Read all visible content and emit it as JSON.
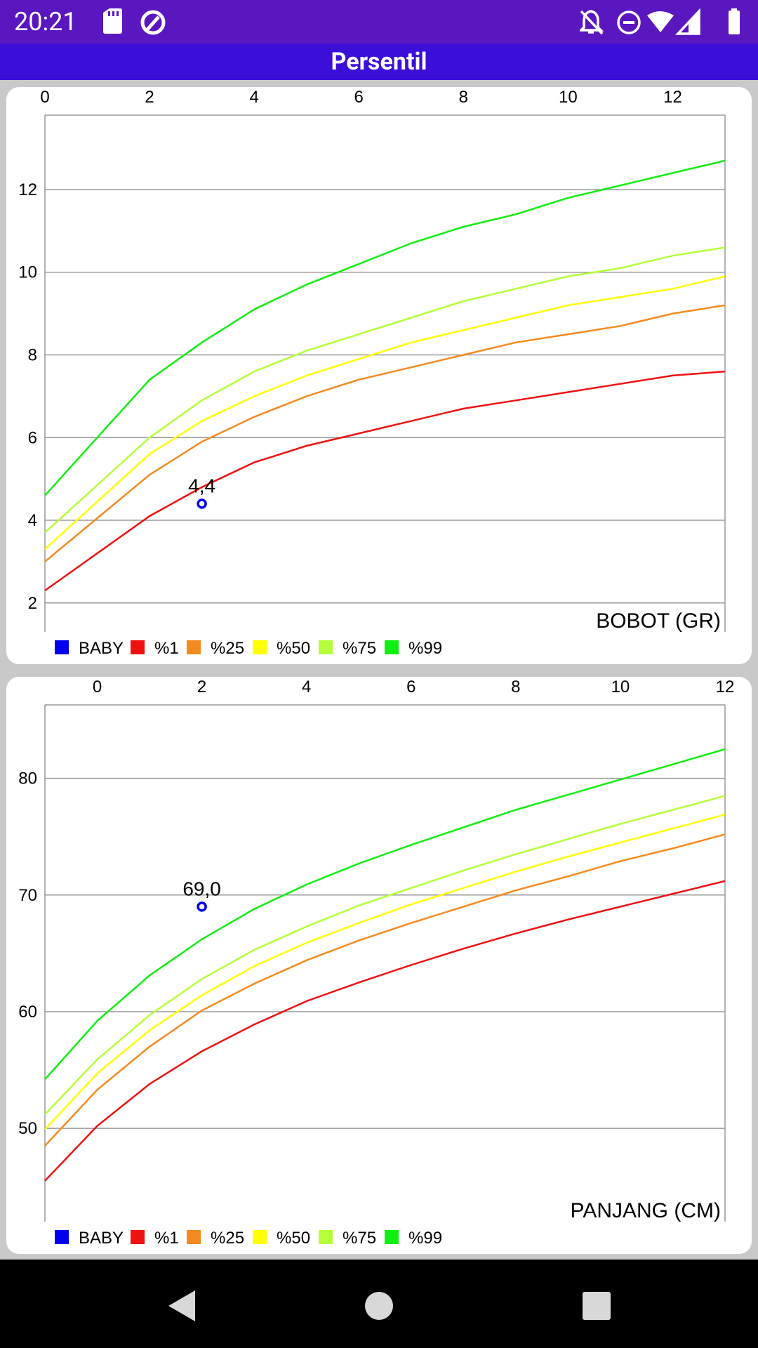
{
  "status_bar": {
    "time": "20:21",
    "left_icons": [
      "sd-card-icon",
      "data-saver-icon"
    ],
    "right_icons": [
      "notifications-off-icon",
      "do-not-disturb-icon",
      "wifi-icon",
      "cell-signal-icon",
      "battery-icon"
    ]
  },
  "app_bar": {
    "title": "Persentil"
  },
  "legend": {
    "items": [
      {
        "label": "BABY",
        "color": "#0000ee"
      },
      {
        "label": "%1",
        "color": "#ee1111"
      },
      {
        "label": "%25",
        "color": "#f58a1f"
      },
      {
        "label": "%50",
        "color": "#ffff00"
      },
      {
        "label": "%75",
        "color": "#b5ff3a"
      },
      {
        "label": "%99",
        "color": "#11ee11"
      }
    ]
  },
  "nav_bar": {
    "buttons": [
      "back-icon",
      "home-icon",
      "recents-icon"
    ]
  },
  "chart_data": [
    {
      "type": "line",
      "label": "BOBOT (GR)",
      "xlim": [
        0,
        13
      ],
      "ylim": [
        1.3,
        13.8
      ],
      "x_ticks": [
        0,
        2,
        4,
        6,
        8,
        10,
        12
      ],
      "y_ticks": [
        2,
        4,
        6,
        8,
        10,
        12
      ],
      "x": [
        0,
        2,
        3,
        4,
        5,
        6,
        7,
        8,
        9,
        10,
        11,
        12,
        13
      ],
      "series": [
        {
          "name": "%1",
          "color": "#ee1111",
          "values": [
            2.3,
            4.1,
            4.8,
            5.4,
            5.8,
            6.1,
            6.4,
            6.7,
            6.9,
            7.1,
            7.3,
            7.5,
            7.6
          ]
        },
        {
          "name": "%25",
          "color": "#f58a1f",
          "values": [
            3.0,
            5.1,
            5.9,
            6.5,
            7.0,
            7.4,
            7.7,
            8.0,
            8.3,
            8.5,
            8.7,
            9.0,
            9.2
          ]
        },
        {
          "name": "%50",
          "color": "#ffff00",
          "values": [
            3.3,
            5.6,
            6.4,
            7.0,
            7.5,
            7.9,
            8.3,
            8.6,
            8.9,
            9.2,
            9.4,
            9.6,
            9.9
          ]
        },
        {
          "name": "%75",
          "color": "#b5ff3a",
          "values": [
            3.7,
            6.0,
            6.9,
            7.6,
            8.1,
            8.5,
            8.9,
            9.3,
            9.6,
            9.9,
            10.1,
            10.4,
            10.6
          ]
        },
        {
          "name": "%99",
          "color": "#11ee11",
          "values": [
            4.6,
            7.4,
            8.3,
            9.1,
            9.7,
            10.2,
            10.7,
            11.1,
            11.4,
            11.8,
            12.1,
            12.4,
            12.7
          ]
        }
      ],
      "baby": {
        "x": 3,
        "y": 4.4,
        "label": "4,4"
      }
    },
    {
      "type": "line",
      "label": "PANJANG (CM)",
      "xlim": [
        -1,
        12
      ],
      "ylim": [
        42,
        86.3
      ],
      "x_ticks": [
        0,
        2,
        4,
        6,
        8,
        10,
        12
      ],
      "y_ticks": [
        50,
        60,
        70,
        80
      ],
      "x": [
        -1,
        0,
        1,
        2,
        3,
        4,
        5,
        6,
        7,
        8,
        9,
        10,
        11,
        12
      ],
      "series": [
        {
          "name": "%1",
          "color": "#ee1111",
          "values": [
            45.5,
            50.2,
            53.8,
            56.6,
            58.9,
            60.9,
            62.5,
            64.0,
            65.4,
            66.7,
            67.9,
            69.0,
            70.1,
            71.2
          ]
        },
        {
          "name": "%25",
          "color": "#f58a1f",
          "values": [
            48.5,
            53.3,
            57.0,
            60.1,
            62.4,
            64.4,
            66.1,
            67.6,
            69.0,
            70.4,
            71.6,
            72.9,
            74.0,
            75.2
          ]
        },
        {
          "name": "%50",
          "color": "#ffff00",
          "values": [
            49.9,
            54.7,
            58.4,
            61.4,
            63.9,
            65.9,
            67.6,
            69.2,
            70.6,
            72.0,
            73.3,
            74.5,
            75.7,
            76.9
          ]
        },
        {
          "name": "%75",
          "color": "#b5ff3a",
          "values": [
            51.2,
            55.9,
            59.7,
            62.8,
            65.3,
            67.3,
            69.1,
            70.6,
            72.1,
            73.5,
            74.8,
            76.1,
            77.3,
            78.5
          ]
        },
        {
          "name": "%99",
          "color": "#11ee11",
          "values": [
            54.2,
            59.2,
            63.1,
            66.2,
            68.8,
            70.9,
            72.7,
            74.3,
            75.8,
            77.3,
            78.6,
            79.9,
            81.2,
            82.5
          ]
        }
      ],
      "baby": {
        "x": 2,
        "y": 69.0,
        "label": "69,0"
      }
    }
  ]
}
